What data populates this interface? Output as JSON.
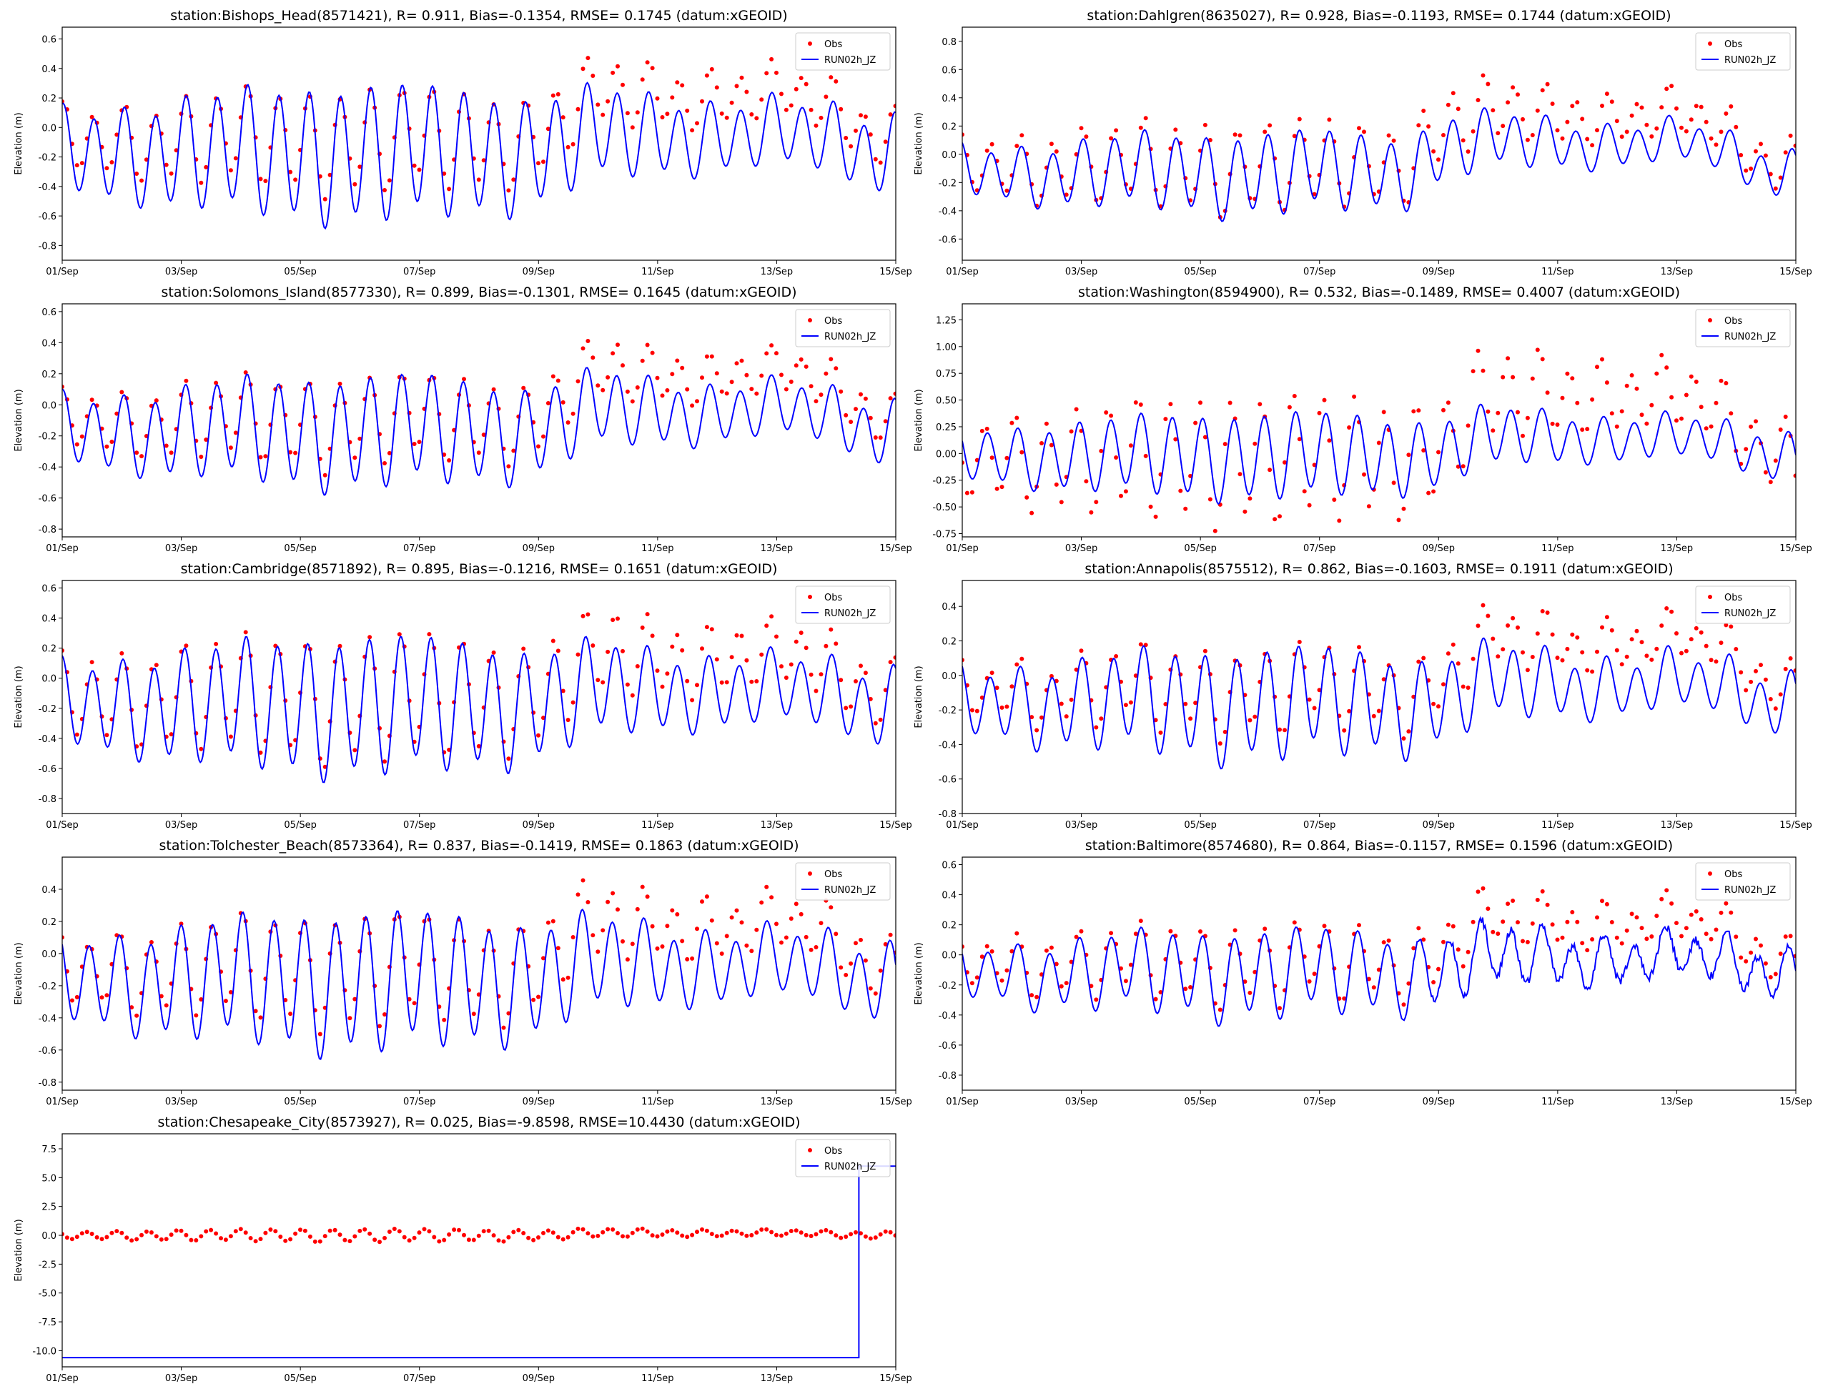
{
  "figure": {
    "legend_obs": "Obs",
    "legend_model": "RUN02h_JZ",
    "ylabel": "Elevation (m)",
    "obs_color": "#ff0000",
    "model_color": "#0000ff"
  },
  "chart_data": [
    {
      "type": "line",
      "title": "station:Bishops_Head(8571421), R= 0.911, Bias=-0.1354, RMSE= 0.1745 (datum:xGEOID)",
      "xlabel": "",
      "ylabel": "Elevation (m)",
      "x_range_days": [
        1,
        15
      ],
      "x_ticks": [
        "01/Sep",
        "03/Sep",
        "05/Sep",
        "07/Sep",
        "09/Sep",
        "11/Sep",
        "13/Sep",
        "15/Sep"
      ],
      "ylim": [
        -0.9,
        0.68
      ],
      "y_ticks": [
        -0.8,
        -0.6,
        -0.4,
        -0.2,
        0.0,
        0.2,
        0.4,
        0.6
      ],
      "y_tick_labels": [
        "-0.8",
        "-0.6",
        "-0.4",
        "-0.2",
        "0.0",
        "0.2",
        "0.4",
        "0.6"
      ],
      "legend": "top-right",
      "series": [
        {
          "name": "Obs",
          "style": "dots",
          "mean": -0.08,
          "mean_surge": 0.22,
          "amp": 0.24,
          "amp2": 0.05,
          "phase": 0.3,
          "surge_start": 9.4,
          "surge_end": 14.2,
          "dt": 0.0833
        },
        {
          "name": "RUN02h_JZ",
          "style": "line",
          "mean": -0.17,
          "mean_surge": -0.05,
          "amp": 0.32,
          "amp2": 0.05,
          "phase": 0.25,
          "surge_start": 9.4,
          "surge_end": 14.2,
          "dt": 0.02
        }
      ]
    },
    {
      "type": "line",
      "title": "station:Dahlgren(8635027), R= 0.928, Bias=-0.1193, RMSE= 0.1744 (datum:xGEOID)",
      "xlabel": "",
      "ylabel": "Elevation (m)",
      "x_range_days": [
        1,
        15
      ],
      "x_ticks": [
        "01/Sep",
        "03/Sep",
        "05/Sep",
        "07/Sep",
        "09/Sep",
        "11/Sep",
        "13/Sep",
        "15/Sep"
      ],
      "ylim": [
        -0.75,
        0.9
      ],
      "y_ticks": [
        -0.6,
        -0.4,
        -0.2,
        0.0,
        0.2,
        0.4,
        0.6,
        0.8
      ],
      "y_tick_labels": [
        "-0.6",
        "-0.4",
        "-0.2",
        "0.0",
        "0.2",
        "0.4",
        "0.6",
        "0.8"
      ],
      "legend": "top-right",
      "series": [
        {
          "name": "Obs",
          "style": "dots",
          "mean": -0.08,
          "mean_surge": 0.28,
          "amp": 0.22,
          "amp2": 0.05,
          "phase": 0.9,
          "surge_start": 8.8,
          "surge_end": 14.0,
          "dt": 0.0833
        },
        {
          "name": "RUN02h_JZ",
          "style": "line",
          "mean": -0.13,
          "mean_surge": 0.08,
          "amp": 0.2,
          "amp2": 0.04,
          "phase": 0.85,
          "surge_start": 8.8,
          "surge_end": 14.0,
          "dt": 0.02
        }
      ]
    },
    {
      "type": "line",
      "title": "station:Solomons_Island(8577330), R= 0.899, Bias=-0.1301, RMSE= 0.1645 (datum:xGEOID)",
      "xlabel": "",
      "ylabel": "Elevation (m)",
      "x_range_days": [
        1,
        15
      ],
      "x_ticks": [
        "01/Sep",
        "03/Sep",
        "05/Sep",
        "07/Sep",
        "09/Sep",
        "11/Sep",
        "13/Sep",
        "15/Sep"
      ],
      "ylim": [
        -0.85,
        0.65
      ],
      "y_ticks": [
        -0.8,
        -0.6,
        -0.4,
        -0.2,
        0.0,
        0.2,
        0.4,
        0.6
      ],
      "y_tick_labels": [
        "-0.8",
        "-0.6",
        "-0.4",
        "-0.2",
        "0.0",
        "0.2",
        "0.4",
        "0.6"
      ],
      "legend": "top-right",
      "series": [
        {
          "name": "Obs",
          "style": "dots",
          "mean": -0.1,
          "mean_surge": 0.2,
          "amp": 0.2,
          "amp2": 0.04,
          "phase": 0.4,
          "surge_start": 9.4,
          "surge_end": 14.2,
          "dt": 0.0833
        },
        {
          "name": "RUN02h_JZ",
          "style": "line",
          "mean": -0.17,
          "mean_surge": -0.04,
          "amp": 0.25,
          "amp2": 0.04,
          "phase": 0.35,
          "surge_start": 9.4,
          "surge_end": 14.2,
          "dt": 0.02
        }
      ]
    },
    {
      "type": "line",
      "title": "station:Washington(8594900), R= 0.532, Bias=-0.1489, RMSE= 0.4007 (datum:xGEOID)",
      "xlabel": "",
      "ylabel": "Elevation (m)",
      "x_range_days": [
        1,
        15
      ],
      "x_ticks": [
        "01/Sep",
        "03/Sep",
        "05/Sep",
        "07/Sep",
        "09/Sep",
        "11/Sep",
        "13/Sep",
        "15/Sep"
      ],
      "ylim": [
        -0.78,
        1.4
      ],
      "y_ticks": [
        -0.75,
        -0.5,
        -0.25,
        0.0,
        0.25,
        0.5,
        0.75,
        1.0,
        1.25
      ],
      "y_tick_labels": [
        "-0.75",
        "-0.50",
        "-0.25",
        "0.00",
        "0.25",
        "0.50",
        "0.75",
        "1.00",
        "1.25"
      ],
      "legend": "top-right",
      "series": [
        {
          "name": "Obs",
          "style": "dots",
          "mean": -0.05,
          "mean_surge": 0.55,
          "amp": 0.42,
          "amp2": 0.08,
          "phase": 2.2,
          "surge_start": 9.3,
          "surge_end": 14.0,
          "dt": 0.0833
        },
        {
          "name": "RUN02h_JZ",
          "style": "line",
          "mean": -0.02,
          "mean_surge": 0.15,
          "amp": 0.28,
          "amp2": 0.04,
          "phase": 1.6,
          "surge_start": 9.3,
          "surge_end": 14.0,
          "dt": 0.02
        }
      ]
    },
    {
      "type": "line",
      "title": "station:Cambridge(8571892), R= 0.895, Bias=-0.1216, RMSE= 0.1651 (datum:xGEOID)",
      "xlabel": "",
      "ylabel": "Elevation (m)",
      "x_range_days": [
        1,
        15
      ],
      "x_ticks": [
        "01/Sep",
        "03/Sep",
        "05/Sep",
        "07/Sep",
        "09/Sep",
        "11/Sep",
        "13/Sep",
        "15/Sep"
      ],
      "ylim": [
        -0.9,
        0.65
      ],
      "y_ticks": [
        -0.8,
        -0.6,
        -0.4,
        -0.2,
        0.0,
        0.2,
        0.4,
        0.6
      ],
      "y_tick_labels": [
        "-0.8",
        "-0.6",
        "-0.4",
        "-0.2",
        "0.0",
        "0.2",
        "0.4",
        "0.6"
      ],
      "legend": "top-right",
      "series": [
        {
          "name": "Obs",
          "style": "dots",
          "mean": -0.12,
          "mean_surge": 0.15,
          "amp": 0.3,
          "amp2": 0.05,
          "phase": 0.6,
          "surge_start": 9.4,
          "surge_end": 14.2,
          "dt": 0.0833
        },
        {
          "name": "RUN02h_JZ",
          "style": "line",
          "mean": -0.18,
          "mean_surge": -0.08,
          "amp": 0.32,
          "amp2": 0.05,
          "phase": 0.55,
          "surge_start": 9.4,
          "surge_end": 14.2,
          "dt": 0.02
        }
      ]
    },
    {
      "type": "line",
      "title": "station:Annapolis(8575512), R= 0.862, Bias=-0.1603, RMSE= 0.1911 (datum:xGEOID)",
      "xlabel": "",
      "ylabel": "Elevation (m)",
      "x_range_days": [
        1,
        15
      ],
      "x_ticks": [
        "01/Sep",
        "03/Sep",
        "05/Sep",
        "07/Sep",
        "09/Sep",
        "11/Sep",
        "13/Sep",
        "15/Sep"
      ],
      "ylim": [
        -0.8,
        0.55
      ],
      "y_ticks": [
        -0.8,
        -0.6,
        -0.4,
        -0.2,
        0.0,
        0.2,
        0.4
      ],
      "y_tick_labels": [
        "-0.8",
        "-0.6",
        "-0.4",
        "-0.2",
        "0.0",
        "0.2",
        "0.4"
      ],
      "legend": "top-right",
      "series": [
        {
          "name": "Obs",
          "style": "dots",
          "mean": -0.08,
          "mean_surge": 0.2,
          "amp": 0.17,
          "amp2": 0.06,
          "phase": 1.1,
          "surge_start": 9.3,
          "surge_end": 14.2,
          "dt": 0.0833
        },
        {
          "name": "RUN02h_JZ",
          "style": "line",
          "mean": -0.16,
          "mean_surge": -0.05,
          "amp": 0.22,
          "amp2": 0.05,
          "phase": 1.05,
          "surge_start": 9.3,
          "surge_end": 14.2,
          "dt": 0.02
        }
      ]
    },
    {
      "type": "line",
      "title": "station:Tolchester_Beach(8573364), R= 0.837, Bias=-0.1419, RMSE= 0.1863 (datum:xGEOID)",
      "xlabel": "",
      "ylabel": "Elevation (m)",
      "x_range_days": [
        1,
        15
      ],
      "x_ticks": [
        "01/Sep",
        "03/Sep",
        "05/Sep",
        "07/Sep",
        "09/Sep",
        "11/Sep",
        "13/Sep",
        "15/Sep"
      ],
      "ylim": [
        -0.85,
        0.6
      ],
      "y_ticks": [
        -0.8,
        -0.6,
        -0.4,
        -0.2,
        0.0,
        0.2,
        0.4
      ],
      "y_tick_labels": [
        "-0.8",
        "-0.6",
        "-0.4",
        "-0.2",
        "0.0",
        "0.2",
        "0.4"
      ],
      "legend": "top-right",
      "series": [
        {
          "name": "Obs",
          "style": "dots",
          "mean": -0.1,
          "mean_surge": 0.18,
          "amp": 0.24,
          "amp2": 0.05,
          "phase": 1.3,
          "surge_start": 9.3,
          "surge_end": 14.2,
          "dt": 0.0833
        },
        {
          "name": "RUN02h_JZ",
          "style": "line",
          "mean": -0.17,
          "mean_surge": -0.07,
          "amp": 0.3,
          "amp2": 0.05,
          "phase": 1.25,
          "surge_start": 9.3,
          "surge_end": 14.2,
          "dt": 0.02
        }
      ]
    },
    {
      "type": "line",
      "title": "station:Baltimore(8574680), R= 0.864, Bias=-0.1157, RMSE= 0.1596 (datum:xGEOID)",
      "xlabel": "",
      "ylabel": "Elevation (m)",
      "x_range_days": [
        1,
        15
      ],
      "x_ticks": [
        "01/Sep",
        "03/Sep",
        "05/Sep",
        "07/Sep",
        "09/Sep",
        "11/Sep",
        "13/Sep",
        "15/Sep"
      ],
      "ylim": [
        -0.9,
        0.65
      ],
      "y_ticks": [
        -0.8,
        -0.6,
        -0.4,
        -0.2,
        0.0,
        0.2,
        0.4,
        0.6
      ],
      "y_tick_labels": [
        "-0.8",
        "-0.6",
        "-0.4",
        "-0.2",
        "0.0",
        "0.2",
        "0.4",
        "0.6"
      ],
      "legend": "top-right",
      "series": [
        {
          "name": "Obs",
          "style": "dots",
          "mean": -0.05,
          "mean_surge": 0.22,
          "amp": 0.18,
          "amp2": 0.06,
          "phase": 1.6,
          "surge_start": 9.2,
          "surge_end": 14.2,
          "dt": 0.0833
        },
        {
          "name": "RUN02h_JZ",
          "style": "line",
          "mean": -0.12,
          "mean_surge": -0.02,
          "amp": 0.2,
          "amp2": 0.05,
          "phase": 1.55,
          "surge_start": 9.2,
          "surge_end": 14.2,
          "dt": 0.02,
          "noise": 0.03
        }
      ]
    },
    {
      "type": "line",
      "title": "station:Chesapeake_City(8573927), R= 0.025, Bias=-9.8598, RMSE=10.4430 (datum:xGEOID)",
      "xlabel": "",
      "ylabel": "Elevation (m)",
      "x_range_days": [
        1,
        15
      ],
      "x_ticks": [
        "01/Sep",
        "03/Sep",
        "05/Sep",
        "07/Sep",
        "09/Sep",
        "11/Sep",
        "13/Sep",
        "15/Sep"
      ],
      "ylim": [
        -11.4,
        8.8
      ],
      "y_ticks": [
        -10.0,
        -7.5,
        -5.0,
        -2.5,
        0.0,
        2.5,
        5.0,
        7.5
      ],
      "y_tick_labels": [
        "-10.0",
        "-7.5",
        "-5.0",
        "-2.5",
        "0.0",
        "2.5",
        "5.0",
        "7.5"
      ],
      "legend": "top-right",
      "series": [
        {
          "name": "Obs",
          "style": "dots",
          "mean": 0.0,
          "mean_surge": 0.2,
          "amp": 0.4,
          "amp2": 0.05,
          "phase": 1.8,
          "surge_start": 9.5,
          "surge_end": 14.0,
          "dt": 0.0833
        },
        {
          "name": "RUN02h_JZ",
          "style": "step",
          "segments": [
            [
              1,
              14.38,
              -10.6
            ],
            [
              14.38,
              15,
              6.0
            ]
          ]
        }
      ]
    }
  ]
}
